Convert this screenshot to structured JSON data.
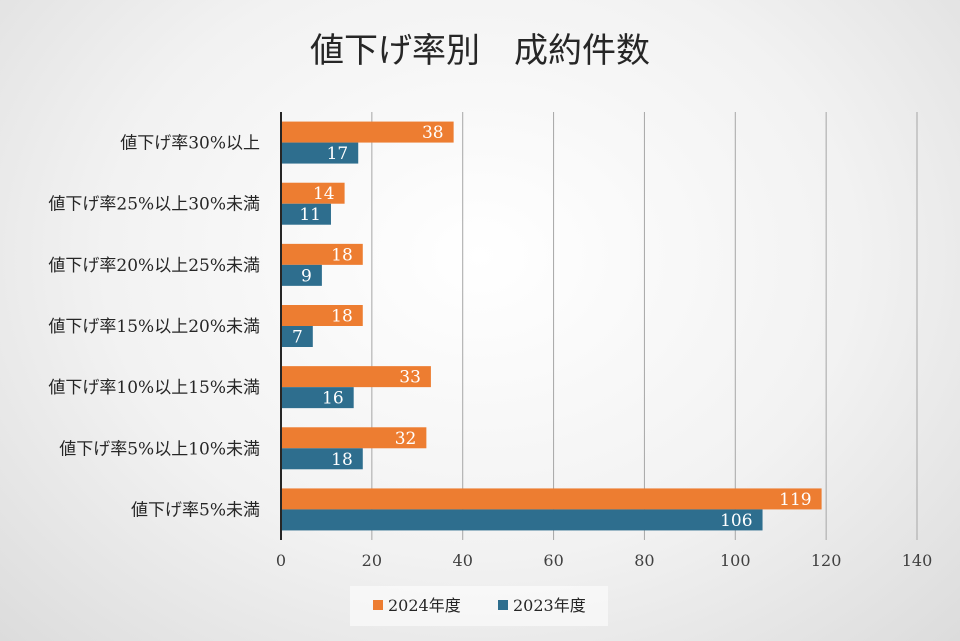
{
  "chart_data": {
    "type": "bar",
    "orientation": "horizontal",
    "title": "値下げ率別　成約件数",
    "categories": [
      "値下げ率30%以上",
      "値下げ率25%以上30%未満",
      "値下げ率20%以上25%未満",
      "値下げ率15%以上20%未満",
      "値下げ率10%以上15%未満",
      "値下げ率5%以上10%未満",
      "値下げ率5%未満"
    ],
    "series": [
      {
        "name": "2024年度",
        "color": "#ED7D31",
        "values": [
          38,
          14,
          18,
          18,
          33,
          32,
          119
        ]
      },
      {
        "name": "2023年度",
        "color": "#2E6E8E",
        "values": [
          17,
          11,
          9,
          7,
          16,
          18,
          106
        ]
      }
    ],
    "xlim": [
      0,
      140
    ],
    "xticks": [
      0,
      20,
      40,
      60,
      80,
      100,
      120,
      140
    ],
    "grid": true,
    "data_labels": true,
    "legend_position": "bottom"
  }
}
